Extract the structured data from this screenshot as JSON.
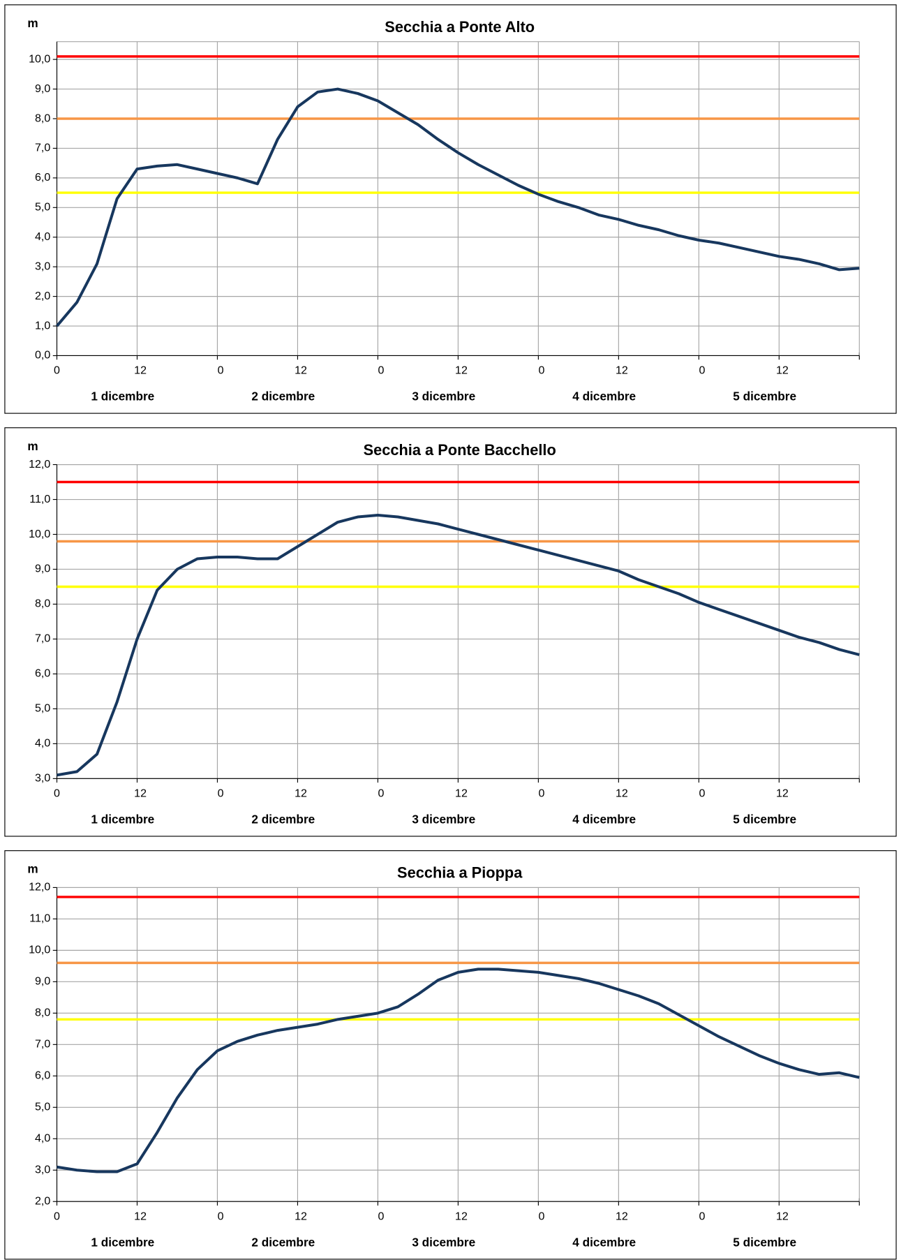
{
  "chart_data": [
    {
      "type": "line",
      "title": "Secchia a Ponte Alto",
      "y_label": "m",
      "x": [
        0,
        3,
        6,
        9,
        12,
        15,
        18,
        21,
        24,
        27,
        30,
        33,
        36,
        39,
        42,
        45,
        48,
        51,
        54,
        57,
        60,
        63,
        66,
        69,
        72,
        75,
        78,
        81,
        84,
        87,
        90,
        93,
        96,
        99,
        102,
        105,
        108,
        111,
        114,
        117,
        120
      ],
      "values": [
        1.0,
        1.8,
        3.1,
        5.3,
        6.3,
        6.4,
        6.45,
        6.3,
        6.15,
        6.0,
        5.8,
        7.3,
        8.4,
        8.9,
        9.0,
        8.85,
        8.6,
        8.2,
        7.8,
        7.3,
        6.85,
        6.45,
        6.1,
        5.75,
        5.45,
        5.2,
        5.0,
        4.75,
        4.6,
        4.4,
        4.25,
        4.05,
        3.9,
        3.8,
        3.65,
        3.5,
        3.35,
        3.25,
        3.1,
        2.9,
        2.95
      ],
      "color": "#17375e",
      "thresholds": [
        {
          "value": 10.1,
          "color": "#ff0000"
        },
        {
          "value": 8.0,
          "color": "#f79646"
        },
        {
          "value": 5.5,
          "color": "#ffff00"
        }
      ],
      "xlim": [
        0,
        120
      ],
      "xticks": [
        {
          "value": 0,
          "label": "0"
        },
        {
          "value": 12,
          "label": "12"
        },
        {
          "value": 24,
          "label": "0"
        },
        {
          "value": 36,
          "label": "12"
        },
        {
          "value": 48,
          "label": "0"
        },
        {
          "value": 60,
          "label": "12"
        },
        {
          "value": 72,
          "label": "0"
        },
        {
          "value": 84,
          "label": "12"
        },
        {
          "value": 96,
          "label": "0"
        },
        {
          "value": 108,
          "label": "12"
        }
      ],
      "day_labels": [
        "1 dicembre",
        "2 dicembre",
        "3 dicembre",
        "4 dicembre",
        "5 dicembre"
      ],
      "ylim": [
        0,
        10.6
      ],
      "yticks": [
        {
          "value": 0,
          "label": "0,0"
        },
        {
          "value": 1,
          "label": "1,0"
        },
        {
          "value": 2,
          "label": "2,0"
        },
        {
          "value": 3,
          "label": "3,0"
        },
        {
          "value": 4,
          "label": "4,0"
        },
        {
          "value": 5,
          "label": "5,0"
        },
        {
          "value": 6,
          "label": "6,0"
        },
        {
          "value": 7,
          "label": "7,0"
        },
        {
          "value": 8,
          "label": "8,0"
        },
        {
          "value": 9,
          "label": "9,0"
        },
        {
          "value": 10,
          "label": "10,0"
        }
      ],
      "grid": true
    },
    {
      "type": "line",
      "title": "Secchia a Ponte Bacchello",
      "y_label": "m",
      "x": [
        0,
        3,
        6,
        9,
        12,
        15,
        18,
        21,
        24,
        27,
        30,
        33,
        36,
        39,
        42,
        45,
        48,
        51,
        54,
        57,
        60,
        63,
        66,
        69,
        72,
        75,
        78,
        81,
        84,
        87,
        90,
        93,
        96,
        99,
        102,
        105,
        108,
        111,
        114,
        117,
        120
      ],
      "values": [
        3.1,
        3.2,
        3.7,
        5.2,
        7.0,
        8.4,
        9.0,
        9.3,
        9.35,
        9.35,
        9.3,
        9.3,
        9.65,
        10.0,
        10.35,
        10.5,
        10.55,
        10.5,
        10.4,
        10.3,
        10.15,
        10.0,
        9.85,
        9.7,
        9.55,
        9.4,
        9.25,
        9.1,
        8.95,
        8.7,
        8.5,
        8.3,
        8.05,
        7.85,
        7.65,
        7.45,
        7.25,
        7.05,
        6.9,
        6.7,
        6.55
      ],
      "color": "#17375e",
      "thresholds": [
        {
          "value": 11.5,
          "color": "#ff0000"
        },
        {
          "value": 9.8,
          "color": "#f79646"
        },
        {
          "value": 8.5,
          "color": "#ffff00"
        }
      ],
      "xlim": [
        0,
        120
      ],
      "xticks": [
        {
          "value": 0,
          "label": "0"
        },
        {
          "value": 12,
          "label": "12"
        },
        {
          "value": 24,
          "label": "0"
        },
        {
          "value": 36,
          "label": "12"
        },
        {
          "value": 48,
          "label": "0"
        },
        {
          "value": 60,
          "label": "12"
        },
        {
          "value": 72,
          "label": "0"
        },
        {
          "value": 84,
          "label": "12"
        },
        {
          "value": 96,
          "label": "0"
        },
        {
          "value": 108,
          "label": "12"
        }
      ],
      "day_labels": [
        "1 dicembre",
        "2 dicembre",
        "3 dicembre",
        "4 dicembre",
        "5 dicembre"
      ],
      "ylim": [
        3,
        12
      ],
      "yticks": [
        {
          "value": 3,
          "label": "3,0"
        },
        {
          "value": 4,
          "label": "4,0"
        },
        {
          "value": 5,
          "label": "5,0"
        },
        {
          "value": 6,
          "label": "6,0"
        },
        {
          "value": 7,
          "label": "7,0"
        },
        {
          "value": 8,
          "label": "8,0"
        },
        {
          "value": 9,
          "label": "9,0"
        },
        {
          "value": 10,
          "label": "10,0"
        },
        {
          "value": 11,
          "label": "11,0"
        },
        {
          "value": 12,
          "label": "12,0"
        }
      ],
      "grid": true
    },
    {
      "type": "line",
      "title": "Secchia a Pioppa",
      "y_label": "m",
      "x": [
        0,
        3,
        6,
        9,
        12,
        15,
        18,
        21,
        24,
        27,
        30,
        33,
        36,
        39,
        42,
        45,
        48,
        51,
        54,
        57,
        60,
        63,
        66,
        69,
        72,
        75,
        78,
        81,
        84,
        87,
        90,
        93,
        96,
        99,
        102,
        105,
        108,
        111,
        114,
        117,
        120
      ],
      "values": [
        3.1,
        3.0,
        2.95,
        2.95,
        3.2,
        4.2,
        5.3,
        6.2,
        6.8,
        7.1,
        7.3,
        7.45,
        7.55,
        7.65,
        7.8,
        7.9,
        8.0,
        8.2,
        8.6,
        9.05,
        9.3,
        9.4,
        9.4,
        9.35,
        9.3,
        9.2,
        9.1,
        8.95,
        8.75,
        8.55,
        8.3,
        7.95,
        7.6,
        7.25,
        6.95,
        6.65,
        6.4,
        6.2,
        6.05,
        6.1,
        5.95
      ],
      "color": "#17375e",
      "thresholds": [
        {
          "value": 11.7,
          "color": "#ff0000"
        },
        {
          "value": 9.6,
          "color": "#f79646"
        },
        {
          "value": 7.8,
          "color": "#ffff00"
        }
      ],
      "xlim": [
        0,
        120
      ],
      "xticks": [
        {
          "value": 0,
          "label": "0"
        },
        {
          "value": 12,
          "label": "12"
        },
        {
          "value": 24,
          "label": "0"
        },
        {
          "value": 36,
          "label": "12"
        },
        {
          "value": 48,
          "label": "0"
        },
        {
          "value": 60,
          "label": "12"
        },
        {
          "value": 72,
          "label": "0"
        },
        {
          "value": 84,
          "label": "12"
        },
        {
          "value": 96,
          "label": "0"
        },
        {
          "value": 108,
          "label": "12"
        }
      ],
      "day_labels": [
        "1 dicembre",
        "2 dicembre",
        "3 dicembre",
        "4 dicembre",
        "5 dicembre"
      ],
      "ylim": [
        2,
        12
      ],
      "yticks": [
        {
          "value": 2,
          "label": "2,0"
        },
        {
          "value": 3,
          "label": "3,0"
        },
        {
          "value": 4,
          "label": "4,0"
        },
        {
          "value": 5,
          "label": "5,0"
        },
        {
          "value": 6,
          "label": "6,0"
        },
        {
          "value": 7,
          "label": "7,0"
        },
        {
          "value": 8,
          "label": "8,0"
        },
        {
          "value": 9,
          "label": "9,0"
        },
        {
          "value": 10,
          "label": "10,0"
        },
        {
          "value": 11,
          "label": "11,0"
        },
        {
          "value": 12,
          "label": "12,0"
        }
      ],
      "grid": true
    }
  ]
}
